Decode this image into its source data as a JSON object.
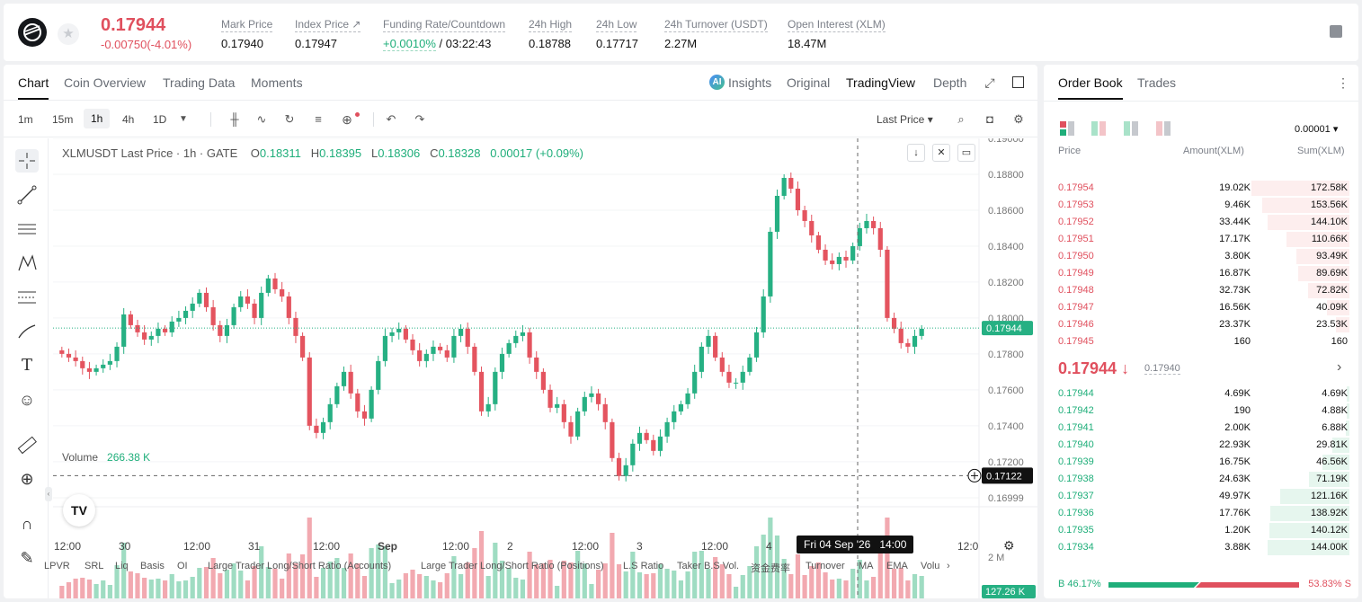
{
  "header": {
    "price": "0.17944",
    "change": "-0.00750(-4.01%)",
    "stats": [
      {
        "label": "Mark Price",
        "value": "0.17940"
      },
      {
        "label": "Index Price ↗",
        "value": "0.17947"
      },
      {
        "label": "Funding Rate/Countdown",
        "value_green": "+0.0010%",
        "value": " / 03:22:43"
      },
      {
        "label": "24h High",
        "value": "0.18788"
      },
      {
        "label": "24h Low",
        "value": "0.17717"
      },
      {
        "label": "24h Turnover (USDT)",
        "value": "2.27M"
      },
      {
        "label": "Open Interest (XLM)",
        "value": "18.47M"
      }
    ]
  },
  "chart_tabs": [
    "Chart",
    "Coin Overview",
    "Trading Data",
    "Moments"
  ],
  "view_tabs": [
    "Insights",
    "Original",
    "TradingView",
    "Depth"
  ],
  "ai_badge": "AI",
  "timeframes": [
    "1m",
    "15m",
    "1h",
    "4h",
    "1D"
  ],
  "price_type": "Last Price ▾",
  "legend": {
    "symbol": "XLMUSDT Last Price · 1h · GATE",
    "o_label": "O",
    "o": "0.18311",
    "h_label": "H",
    "h": "0.18395",
    "l_label": "L",
    "l": "0.18306",
    "c_label": "C",
    "c": "0.18328",
    "change": "0.00017 (+0.09%)"
  },
  "volume_legend": {
    "label": "Volume",
    "value": "266.38 K"
  },
  "indicators": [
    "LPVR",
    "SRL",
    "Liq",
    "Basis",
    "OI",
    "Large Trader Long/Short Ratio (Accounts)",
    "Large Trader Long/Short Ratio (Positions)",
    "L.S Ratio",
    "Taker B.S Vol.",
    "资金费率",
    "Turnover",
    "MA",
    "EMA",
    "Volu"
  ],
  "crosshair_time": "Fri 04 Sep '26   14:00",
  "tv_logo": "TV",
  "chart_data": {
    "type": "candlestick",
    "title": "XLMUSDT Last Price · 1h · GATE",
    "y_ticks": [
      "0.19000",
      "0.18800",
      "0.18600",
      "0.18400",
      "0.18200",
      "0.18000",
      "0.17800",
      "0.17600",
      "0.17400",
      "0.17200",
      "0.16999"
    ],
    "x_ticks": [
      "12:00",
      "30",
      "12:00",
      "31",
      "12:00",
      "Sep",
      "12:00",
      "2",
      "12:00",
      "3",
      "12:00",
      "4",
      "12:0"
    ],
    "last_price_label": "0.17944",
    "crosshair_price_label": "0.17122",
    "volume_axis_label": "2 M",
    "volume_last_label": "127.26 K",
    "closes": [
      0.178,
      0.1778,
      0.1776,
      0.1772,
      0.177,
      0.1772,
      0.1774,
      0.1776,
      0.1784,
      0.1802,
      0.1796,
      0.1792,
      0.1788,
      0.179,
      0.1794,
      0.1792,
      0.1798,
      0.18,
      0.1804,
      0.1808,
      0.1814,
      0.1806,
      0.1796,
      0.179,
      0.1796,
      0.1806,
      0.1812,
      0.1808,
      0.18,
      0.1814,
      0.1822,
      0.1816,
      0.1812,
      0.18,
      0.179,
      0.1778,
      0.174,
      0.1736,
      0.1742,
      0.1752,
      0.1762,
      0.177,
      0.1758,
      0.1748,
      0.1744,
      0.176,
      0.1776,
      0.179,
      0.1792,
      0.1794,
      0.1788,
      0.1782,
      0.1776,
      0.178,
      0.1784,
      0.1782,
      0.1778,
      0.179,
      0.1794,
      0.1784,
      0.177,
      0.1748,
      0.1752,
      0.177,
      0.178,
      0.1786,
      0.179,
      0.1792,
      0.1778,
      0.177,
      0.176,
      0.175,
      0.1752,
      0.1742,
      0.1734,
      0.1748,
      0.1756,
      0.1758,
      0.1752,
      0.1742,
      0.1722,
      0.1712,
      0.1718,
      0.173,
      0.1736,
      0.1732,
      0.1726,
      0.1734,
      0.1742,
      0.1748,
      0.1752,
      0.1758,
      0.177,
      0.1784,
      0.179,
      0.1778,
      0.177,
      0.1764,
      0.1764,
      0.177,
      0.1778,
      0.1792,
      0.1812,
      0.1848,
      0.1868,
      0.1878,
      0.1872,
      0.186,
      0.1854,
      0.1846,
      0.1838,
      0.1832,
      0.183,
      0.1834,
      0.1832,
      0.184,
      0.185,
      0.1854,
      0.185,
      0.1838,
      0.18,
      0.1794,
      0.1786,
      0.1784,
      0.179,
      0.1794
    ]
  },
  "orderbook": {
    "tabs": [
      "Order Book",
      "Trades"
    ],
    "precision": "0.00001 ▾",
    "headers": [
      "Price",
      "Amount(XLM)",
      "Sum(XLM)"
    ],
    "asks": [
      {
        "price": "0.17954",
        "amount": "19.02K",
        "sum": "172.58K",
        "fill": 0.99
      },
      {
        "price": "0.17953",
        "amount": "9.46K",
        "sum": "153.56K",
        "fill": 0.88
      },
      {
        "price": "0.17952",
        "amount": "33.44K",
        "sum": "144.10K",
        "fill": 0.83
      },
      {
        "price": "0.17951",
        "amount": "17.17K",
        "sum": "110.66K",
        "fill": 0.64
      },
      {
        "price": "0.17950",
        "amount": "3.80K",
        "sum": "93.49K",
        "fill": 0.54
      },
      {
        "price": "0.17949",
        "amount": "16.87K",
        "sum": "89.69K",
        "fill": 0.52
      },
      {
        "price": "0.17948",
        "amount": "32.73K",
        "sum": "72.82K",
        "fill": 0.42
      },
      {
        "price": "0.17947",
        "amount": "16.56K",
        "sum": "40.09K",
        "fill": 0.23
      },
      {
        "price": "0.17946",
        "amount": "23.37K",
        "sum": "23.53K",
        "fill": 0.14
      },
      {
        "price": "0.17945",
        "amount": "160",
        "sum": "160",
        "fill": 0.0
      }
    ],
    "mid_price": "0.17944 ↓",
    "mid_mark": "0.17940",
    "bids": [
      {
        "price": "0.17944",
        "amount": "4.69K",
        "sum": "4.69K",
        "fill": 0.03
      },
      {
        "price": "0.17942",
        "amount": "190",
        "sum": "4.88K",
        "fill": 0.03
      },
      {
        "price": "0.17941",
        "amount": "2.00K",
        "sum": "6.88K",
        "fill": 0.04
      },
      {
        "price": "0.17940",
        "amount": "22.93K",
        "sum": "29.81K",
        "fill": 0.17
      },
      {
        "price": "0.17939",
        "amount": "16.75K",
        "sum": "46.56K",
        "fill": 0.27
      },
      {
        "price": "0.17938",
        "amount": "24.63K",
        "sum": "71.19K",
        "fill": 0.41
      },
      {
        "price": "0.17937",
        "amount": "49.97K",
        "sum": "121.16K",
        "fill": 0.7
      },
      {
        "price": "0.17936",
        "amount": "17.76K",
        "sum": "138.92K",
        "fill": 0.8
      },
      {
        "price": "0.17935",
        "amount": "1.20K",
        "sum": "140.12K",
        "fill": 0.81
      },
      {
        "price": "0.17934",
        "amount": "3.88K",
        "sum": "144.00K",
        "fill": 0.83
      }
    ],
    "buy_ratio": "B 46.17%",
    "sell_ratio": "53.83% S",
    "buy_fraction": 0.4617
  }
}
